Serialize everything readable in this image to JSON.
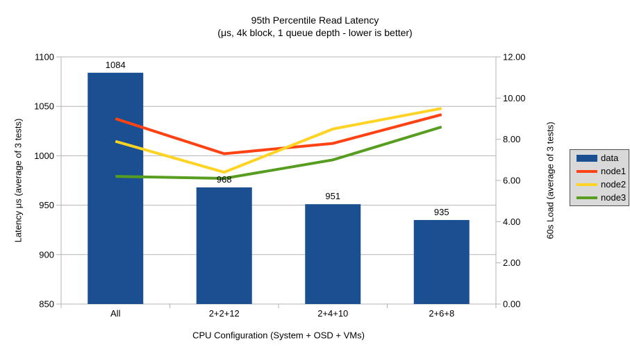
{
  "chart_data": {
    "type": "bar+line",
    "title": "95th Percentile Read Latency",
    "subtitle": "(μs, 4k block, 1 queue depth - lower is better)",
    "categories": [
      "All",
      "2+2+12",
      "2+4+10",
      "2+6+8"
    ],
    "bar_series": [
      {
        "name": "data",
        "color": "#1a4f91",
        "axis": "left",
        "values": [
          1084,
          968,
          951,
          935
        ]
      }
    ],
    "line_series": [
      {
        "name": "node1",
        "color": "#ff4214",
        "axis": "right",
        "values": [
          9.0,
          7.3,
          7.8,
          9.2
        ]
      },
      {
        "name": "node2",
        "color": "#ffd323",
        "axis": "right",
        "values": [
          7.9,
          6.4,
          8.5,
          9.5
        ]
      },
      {
        "name": "node3",
        "color": "#579d1f",
        "axis": "right",
        "values": [
          6.2,
          6.1,
          7.0,
          8.6
        ]
      }
    ],
    "left_axis": {
      "title": "Latency μs (average of 3 tests)",
      "min": 850,
      "max": 1100,
      "step": 50,
      "tick_labels": [
        "1100",
        "1050",
        "1000",
        "950",
        "900",
        "850"
      ]
    },
    "right_axis": {
      "title": "60s Load (average of 3 tests)",
      "min": 0,
      "max": 12,
      "step": 2,
      "tick_labels": [
        "12.00",
        "10.00",
        "8.00",
        "6.00",
        "4.00",
        "2.00",
        "0.00"
      ]
    },
    "x_axis": {
      "title": "CPU Configuration (System + OSD + VMs)"
    },
    "legend": {
      "position": "right",
      "items": [
        {
          "label": "data",
          "color": "#1a4f91",
          "marker": "bar"
        },
        {
          "label": "node1",
          "color": "#ff4214",
          "marker": "line"
        },
        {
          "label": "node2",
          "color": "#ffd323",
          "marker": "line"
        },
        {
          "label": "node3",
          "color": "#579d1f",
          "marker": "line"
        }
      ]
    },
    "grid": "horizontal-only",
    "colors": {
      "gridline": "#b3b3b3",
      "axis_line": "#b3b3b3",
      "text": "#000000",
      "legend_bg": "#d9d9d9",
      "legend_border": "#4d4d4d",
      "background": "#ffffff"
    }
  }
}
